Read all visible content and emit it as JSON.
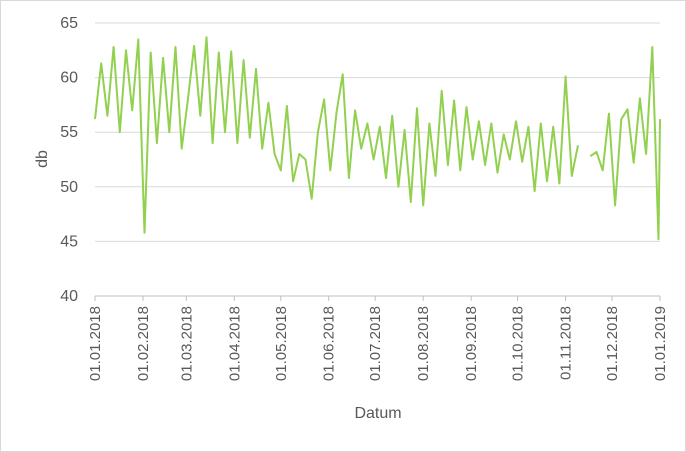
{
  "chart_data": {
    "type": "line",
    "y_label": "db",
    "x_label": "Datum",
    "x": [
      "01.01.2018",
      "05.01.2018",
      "09.01.2018",
      "13.01.2018",
      "17.01.2018",
      "21.01.2018",
      "25.01.2018",
      "29.01.2018",
      "02.02.2018",
      "06.02.2018",
      "10.02.2018",
      "14.02.2018",
      "18.02.2018",
      "22.02.2018",
      "26.02.2018",
      "02.03.2018",
      "06.03.2018",
      "10.03.2018",
      "14.03.2018",
      "18.03.2018",
      "22.03.2018",
      "26.03.2018",
      "30.03.2018",
      "03.04.2018",
      "07.04.2018",
      "11.04.2018",
      "15.04.2018",
      "19.04.2018",
      "23.04.2018",
      "27.04.2018",
      "01.05.2018",
      "05.05.2018",
      "09.05.2018",
      "13.05.2018",
      "17.05.2018",
      "21.05.2018",
      "25.05.2018",
      "29.05.2018",
      "02.06.2018",
      "06.06.2018",
      "10.06.2018",
      "14.06.2018",
      "18.06.2018",
      "22.06.2018",
      "26.06.2018",
      "30.06.2018",
      "04.07.2018",
      "08.07.2018",
      "12.07.2018",
      "16.07.2018",
      "20.07.2018",
      "24.07.2018",
      "28.07.2018",
      "01.08.2018",
      "05.08.2018",
      "09.08.2018",
      "13.08.2018",
      "17.08.2018",
      "21.08.2018",
      "25.08.2018",
      "29.08.2018",
      "02.09.2018",
      "06.09.2018",
      "10.09.2018",
      "14.09.2018",
      "18.09.2018",
      "22.09.2018",
      "26.09.2018",
      "30.09.2018",
      "04.10.2018",
      "08.10.2018",
      "12.10.2018",
      "16.10.2018",
      "20.10.2018",
      "24.10.2018",
      "28.10.2018",
      "01.11.2018",
      "05.11.2018",
      "09.11.2018",
      "13.11.2018",
      "17.11.2018",
      "21.11.2018",
      "25.11.2018",
      "29.11.2018",
      "03.12.2018",
      "07.12.2018",
      "11.12.2018",
      "15.12.2018",
      "19.12.2018",
      "23.12.2018",
      "27.12.2018",
      "31.12.2018",
      "01.01.2019"
    ],
    "series": [
      {
        "color": "#92d050",
        "values": [
          56.2,
          61.3,
          56.5,
          62.8,
          55,
          62.5,
          57,
          63.5,
          45.8,
          62.3,
          54,
          61.8,
          55,
          62.8,
          53.5,
          58,
          62.9,
          56.5,
          63.7,
          54,
          62.3,
          55,
          62.4,
          54,
          61.6,
          54.5,
          60.8,
          53.5,
          57.7,
          53,
          51.5,
          57.4,
          50.5,
          53,
          52.5,
          48.9,
          55,
          58,
          51.5,
          56.8,
          60.3,
          50.8,
          57,
          53.5,
          55.8,
          52.5,
          55.5,
          50.8,
          56.5,
          50,
          55.2,
          48.6,
          57.2,
          48.3,
          55.8,
          51,
          58.8,
          52,
          57.9,
          51.5,
          57.3,
          52.5,
          56,
          52,
          55.8,
          51.3,
          54.8,
          52.5,
          56,
          52.3,
          55.5,
          49.6,
          55.8,
          50.5,
          55.5,
          50.3,
          60.1,
          51,
          53.8,
          null,
          52.8,
          53.2,
          51.5,
          56.7,
          48.3,
          56.2,
          57.1,
          52.2,
          58.1,
          53,
          62.8,
          45.2,
          56.2
        ]
      }
    ],
    "xlim": [
      "01.01.2018",
      "01.01.2019"
    ],
    "xticks": [
      "01.01.2018",
      "01.02.2018",
      "01.03.2018",
      "01.04.2018",
      "01.05.2018",
      "01.06.2018",
      "01.07.2018",
      "01.08.2018",
      "01.09.2018",
      "01.10.2018",
      "01.11.2018",
      "01.12.2018",
      "01.01.2019"
    ],
    "ylim": [
      40,
      65
    ],
    "yticks": [
      40,
      45,
      50,
      55,
      60,
      65
    ],
    "grid": true
  }
}
